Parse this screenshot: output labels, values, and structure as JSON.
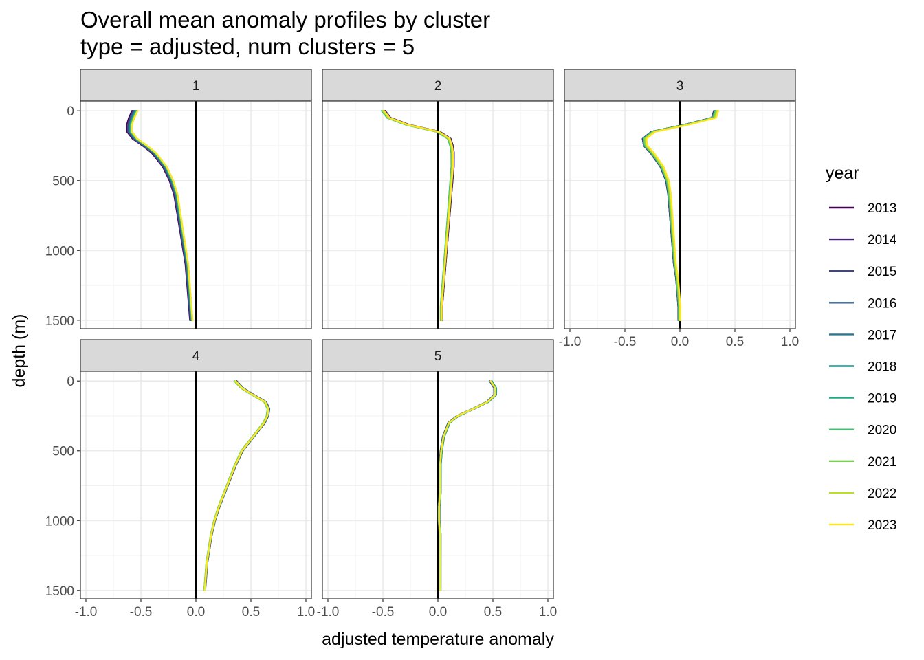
{
  "chart_data": {
    "type": "line",
    "title": "Overall mean anomaly profiles by cluster",
    "subtitle": "type = adjusted, num clusters = 5",
    "xlabel": "adjusted temperature anomaly",
    "ylabel": "depth (m)",
    "xlim": [
      -1.05,
      1.05
    ],
    "ylim": [
      1560,
      -70
    ],
    "y_reversed": true,
    "x_ticks": [
      "-1.0",
      "-0.5",
      "0.0",
      "0.5",
      "1.0"
    ],
    "x_tick_values": [
      -1.0,
      -0.5,
      0.0,
      0.5,
      1.0
    ],
    "y_ticks": [
      "0",
      "500",
      "1000",
      "1500"
    ],
    "y_tick_values": [
      0,
      500,
      1000,
      1500
    ],
    "vline_x": 0,
    "grid": true,
    "legend_title": "year",
    "legend_position": "right",
    "years": [
      "2013",
      "2014",
      "2015",
      "2016",
      "2017",
      "2018",
      "2019",
      "2020",
      "2021",
      "2022",
      "2023"
    ],
    "colors": [
      "#440154",
      "#482475",
      "#414487",
      "#355F8D",
      "#2A788E",
      "#21908C",
      "#22A884",
      "#43BF71",
      "#7AD151",
      "#BBDF27",
      "#FDE725"
    ],
    "depths": [
      0,
      50,
      100,
      150,
      200,
      250,
      300,
      400,
      500,
      600,
      700,
      800,
      900,
      1000,
      1100,
      1200,
      1300,
      1400,
      1500
    ],
    "facets": [
      {
        "label": "1",
        "base": [
          -0.55,
          -0.58,
          -0.6,
          -0.6,
          -0.55,
          -0.46,
          -0.38,
          -0.28,
          -0.22,
          -0.18,
          -0.16,
          -0.14,
          -0.12,
          -0.1,
          -0.08,
          -0.07,
          -0.06,
          -0.05,
          -0.04
        ],
        "offsets": [
          -0.03,
          -0.02,
          -0.02,
          -0.01,
          0.0,
          0.0,
          0.01,
          0.01,
          0.02,
          0.02,
          0.02
        ]
      },
      {
        "label": "2",
        "base": [
          -0.5,
          -0.45,
          -0.28,
          0.0,
          0.1,
          0.12,
          0.13,
          0.13,
          0.12,
          0.11,
          0.1,
          0.09,
          0.08,
          0.07,
          0.06,
          0.05,
          0.04,
          0.03,
          0.03
        ],
        "offsets": [
          0.02,
          0.02,
          0.01,
          0.01,
          0.0,
          0.0,
          -0.01,
          -0.01,
          0.0,
          0.0,
          0.01
        ]
      },
      {
        "label": "3",
        "base": [
          0.32,
          0.3,
          0.05,
          -0.25,
          -0.33,
          -0.32,
          -0.26,
          -0.17,
          -0.12,
          -0.1,
          -0.09,
          -0.08,
          -0.07,
          -0.06,
          -0.05,
          -0.03,
          -0.02,
          -0.01,
          -0.01
        ],
        "offsets": [
          -0.01,
          -0.01,
          -0.01,
          0.0,
          0.0,
          0.0,
          0.0,
          0.0,
          0.01,
          0.02,
          0.03
        ]
      },
      {
        "label": "4",
        "base": [
          0.36,
          0.42,
          0.52,
          0.63,
          0.66,
          0.65,
          0.62,
          0.52,
          0.42,
          0.36,
          0.31,
          0.26,
          0.21,
          0.17,
          0.14,
          0.12,
          0.1,
          0.09,
          0.08
        ],
        "offsets": [
          0.0,
          0.0,
          0.01,
          0.01,
          0.0,
          0.0,
          0.0,
          -0.01,
          -0.01,
          0.0,
          0.0
        ]
      },
      {
        "label": "5",
        "base": [
          0.48,
          0.52,
          0.52,
          0.45,
          0.32,
          0.18,
          0.1,
          0.05,
          0.03,
          0.02,
          0.02,
          0.02,
          0.01,
          0.01,
          0.02,
          0.02,
          0.02,
          0.02,
          0.02
        ],
        "offsets": [
          0.0,
          0.01,
          0.0,
          -0.01,
          0.0,
          0.0,
          0.01,
          0.0,
          0.0,
          0.0,
          0.0
        ]
      }
    ]
  }
}
